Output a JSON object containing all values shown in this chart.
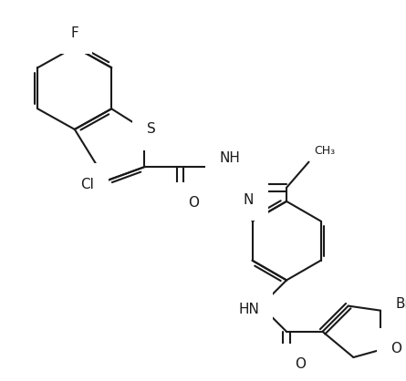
{
  "bg_color": "#ffffff",
  "line_color": "#1a1a1a",
  "lw": 1.5,
  "figsize": [
    4.45,
    4.18
  ],
  "dpi": 100,
  "xlim": [
    0,
    445
  ],
  "ylim": [
    0,
    418
  ]
}
